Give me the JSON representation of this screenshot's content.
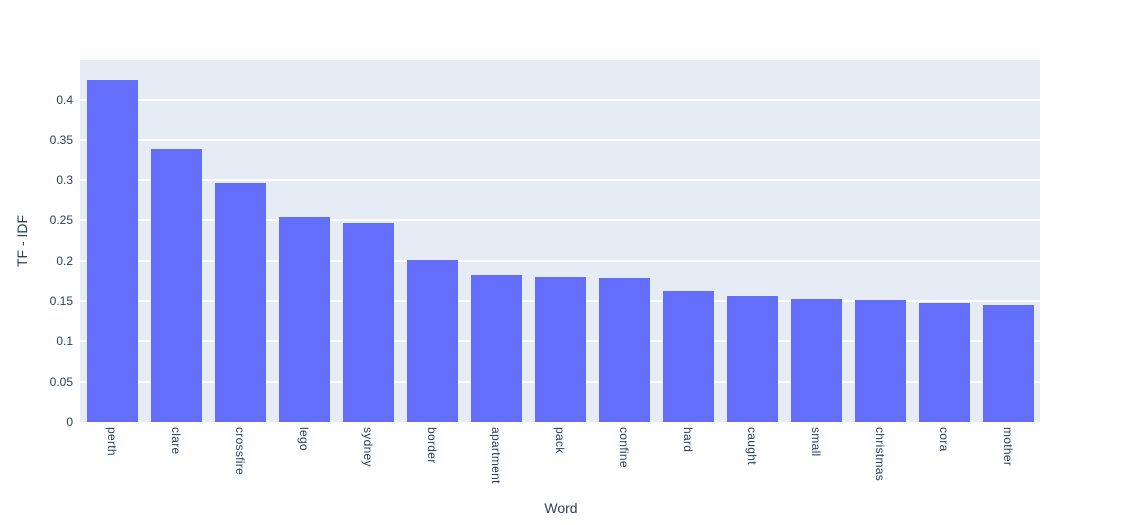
{
  "figure": {
    "background_color": "#ffffff",
    "plot_background_color": "#e5ecf6",
    "grid_color": "#ffffff",
    "text_color": "#2a3f5f",
    "bar_color": "#636efa"
  },
  "chart_data": {
    "type": "bar",
    "title": "",
    "xlabel": "Word",
    "ylabel": "TF - IDF",
    "categories": [
      "perth",
      "clare",
      "crossfire",
      "lego",
      "sydney",
      "border",
      "apartment",
      "pack",
      "confine",
      "hard",
      "caught",
      "small",
      "christmas",
      "cora",
      "mother"
    ],
    "values": [
      0.424,
      0.339,
      0.296,
      0.254,
      0.247,
      0.201,
      0.182,
      0.18,
      0.178,
      0.163,
      0.156,
      0.153,
      0.151,
      0.147,
      0.145
    ],
    "yticks": [
      0,
      0.05,
      0.1,
      0.15,
      0.2,
      0.25,
      0.3,
      0.35,
      0.4
    ],
    "ytick_labels": [
      "0",
      "0.05",
      "0.1",
      "0.15",
      "0.2",
      "0.25",
      "0.3",
      "0.35",
      "0.4"
    ],
    "ylim": [
      0,
      0.449
    ],
    "grid": true,
    "legend_visible": false,
    "bar_orientation": "vertical",
    "xtick_rotation": 90
  }
}
